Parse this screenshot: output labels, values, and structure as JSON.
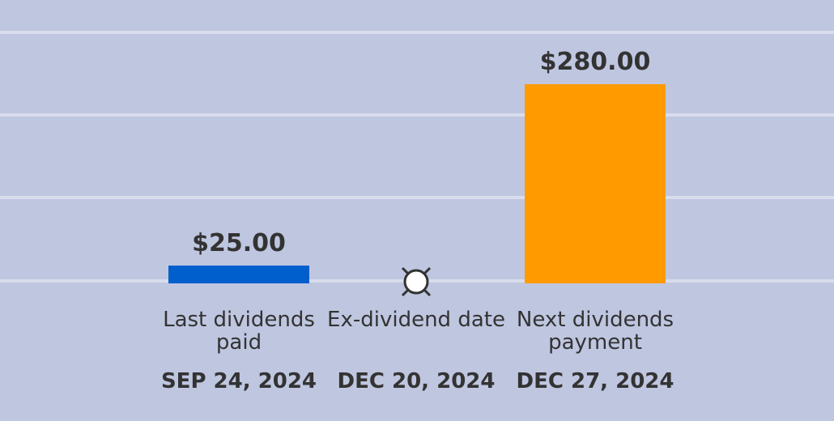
{
  "chart_data": {
    "type": "bar",
    "categories": [
      "Last dividends paid",
      "Ex-dividend date",
      "Next dividends payment"
    ],
    "dates": [
      "SEP 24, 2024",
      "DEC 20, 2024",
      "DEC 27, 2024"
    ],
    "values": [
      25,
      null,
      280
    ],
    "value_labels": [
      "$25.00",
      null,
      "$280.00"
    ],
    "colors": [
      "#005fcc",
      null,
      "#ff9a00"
    ],
    "ylim": [
      0,
      350
    ]
  }
}
